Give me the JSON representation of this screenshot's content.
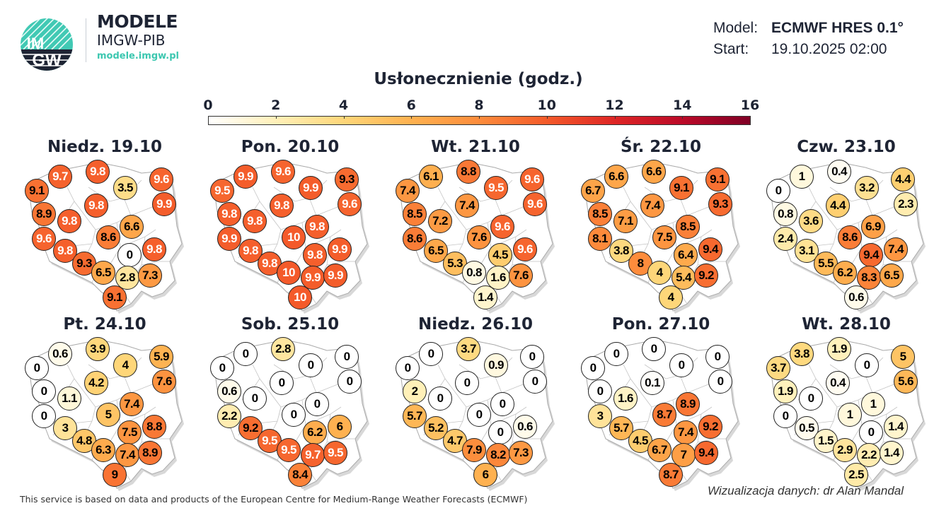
{
  "header": {
    "brand_title": "MODELE",
    "brand_subtitle": "IMGW-PIB",
    "brand_url": "modele.imgw.pl",
    "logo_text": "IMGW",
    "model_label": "Model:",
    "model_value": "ECMWF HRES 0.1°",
    "start_label": "Start:",
    "start_value": "19.10.2025 02:00"
  },
  "colors": {
    "text_dark": "#1e2434",
    "brand_teal": "#3cc7b0",
    "scale_min": "#ffffff",
    "scale_max": "#800026"
  },
  "chart_data": {
    "type": "scatter",
    "title": "Usłonecznienie (godz.)",
    "colorbar": {
      "min": 0,
      "max": 16,
      "ticks": [
        "0",
        "2",
        "4",
        "6",
        "8",
        "10",
        "12",
        "14",
        "16"
      ]
    },
    "maps": [
      {
        "title": "Niedz. 19.10",
        "values": [
          9.1,
          9.7,
          9.8,
          3.5,
          9.6,
          9.9,
          9.8,
          8.9,
          9.8,
          6.6,
          8.6,
          9.6,
          0,
          9.8,
          9.8,
          9.3,
          6.5,
          2.8,
          7.3,
          9.1
        ]
      },
      {
        "title": "Pon. 20.10",
        "values": [
          9.5,
          9.9,
          9.6,
          9.9,
          9.3,
          9.6,
          9.8,
          9.8,
          9.8,
          9.8,
          10,
          9.9,
          9.8,
          9.9,
          9.8,
          9.8,
          10,
          9.9,
          9.9,
          10
        ]
      },
      {
        "title": "Wt. 21.10",
        "values": [
          7.4,
          6.1,
          8.8,
          9.5,
          9.6,
          9.6,
          7.4,
          8.5,
          7.2,
          9.6,
          7.6,
          8.6,
          4.5,
          9.6,
          6.5,
          5.3,
          0.8,
          1.6,
          7.6,
          1.4
        ]
      },
      {
        "title": "Śr. 22.10",
        "values": [
          6.7,
          6.6,
          6.6,
          9.1,
          9.1,
          9.3,
          7.4,
          8.5,
          7.1,
          8.5,
          7.5,
          8.1,
          6.4,
          9.4,
          3.8,
          8,
          4,
          5.4,
          9.2,
          4
        ]
      },
      {
        "title": "Czw. 23.10",
        "values": [
          0,
          1,
          0.4,
          3.2,
          4.4,
          2.3,
          4.4,
          0.8,
          3.6,
          6.9,
          8.6,
          2.4,
          9.4,
          7.4,
          3.1,
          5.5,
          6.2,
          8.3,
          6.5,
          0.6
        ]
      },
      {
        "title": "Pt. 24.10",
        "values": [
          0,
          0.6,
          3.9,
          4,
          5.9,
          7.6,
          4.2,
          0,
          1.1,
          7.4,
          5,
          0,
          7.5,
          8.8,
          3,
          4.8,
          6.3,
          7.4,
          8.9,
          9
        ]
      },
      {
        "title": "Sob. 25.10",
        "values": [
          0,
          0,
          2.8,
          0,
          0,
          0,
          0,
          0.6,
          0,
          0,
          0,
          2.2,
          6.2,
          6,
          9.2,
          9.5,
          9.5,
          9.7,
          9.5,
          8.4
        ]
      },
      {
        "title": "Niedz. 26.10",
        "values": [
          0,
          0,
          3.7,
          0.9,
          0,
          0,
          0,
          2,
          0,
          0,
          0,
          5.7,
          0,
          0.6,
          5.2,
          4.7,
          7.9,
          8.2,
          7.3,
          6
        ]
      },
      {
        "title": "Pon. 27.10",
        "values": [
          0,
          0,
          0,
          0,
          0,
          0,
          0.1,
          0,
          1.6,
          8.9,
          8.7,
          3,
          7.4,
          9.2,
          5.7,
          4.5,
          6.7,
          7,
          9.4,
          8.7
        ]
      },
      {
        "title": "Wt. 28.10",
        "values": [
          3.7,
          3.8,
          1.9,
          0,
          5,
          5.6,
          0.4,
          1.9,
          0,
          1,
          1,
          0,
          0,
          1.4,
          0.5,
          1.5,
          2.9,
          2.2,
          1.4,
          2.5
        ]
      }
    ]
  },
  "footer": {
    "source": "This service is based on data and products of the European Centre for Medium-Range Weather Forecasts (ECMWF)",
    "credit": "Wizualizacja danych: dr Alan Mandal"
  }
}
